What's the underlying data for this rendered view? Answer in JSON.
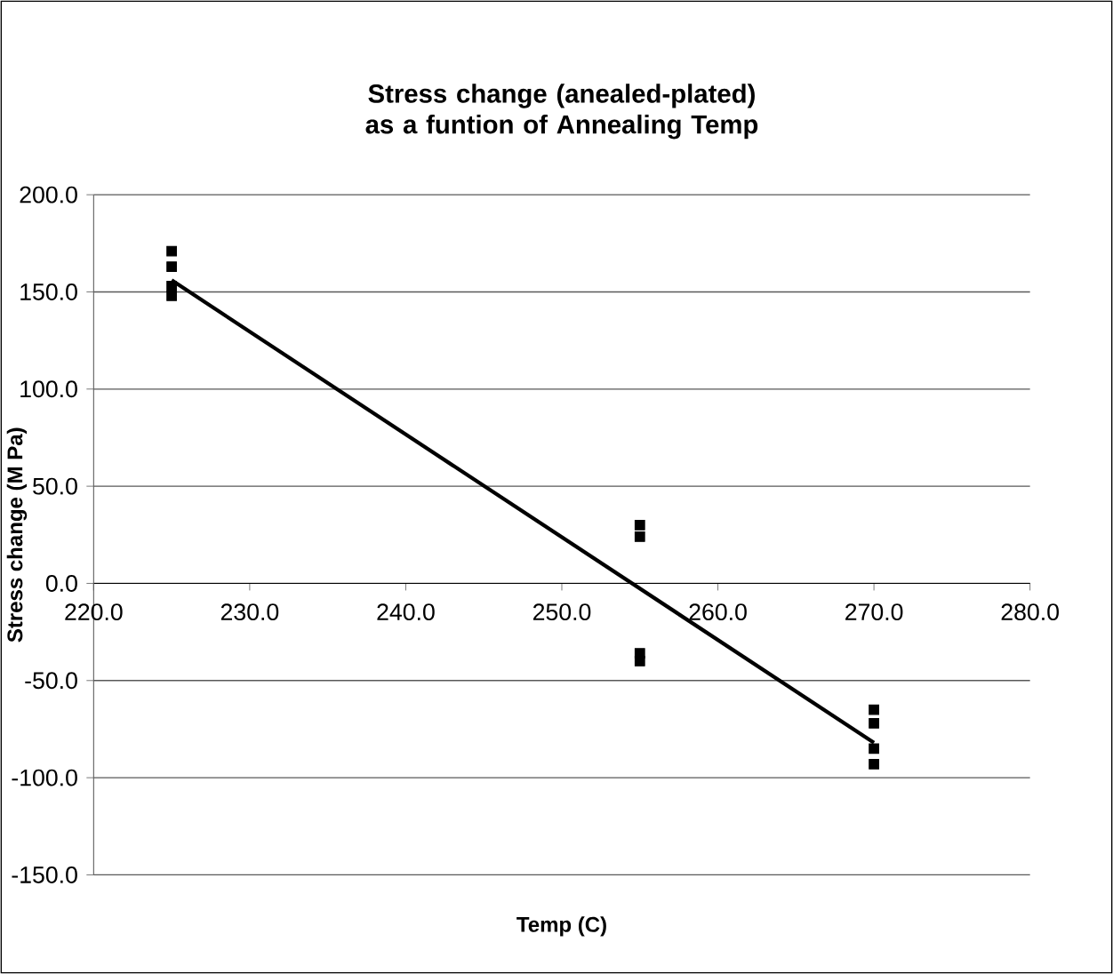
{
  "chart_data": {
    "type": "scatter",
    "title": "Stress change (anealed-plated) as a funtion of Annealing Temp",
    "xlabel": "Temp (C)",
    "ylabel": "Stress change (M Pa)",
    "series": [
      {
        "type": "scatter",
        "color": "#000000",
        "marker": "square",
        "x": [
          225,
          225,
          225,
          225,
          255,
          255,
          255,
          255,
          270,
          270,
          270,
          270
        ],
        "values": [
          171,
          163,
          153,
          148,
          30,
          24,
          -36,
          -40,
          -65,
          -72,
          -85,
          -93
        ]
      },
      {
        "type": "line",
        "color": "#000000",
        "marker": "none",
        "x": [
          225,
          270
        ],
        "values": [
          156,
          -82
        ]
      }
    ],
    "xlim": [
      220,
      280
    ],
    "xticks": [
      {
        "value": 220,
        "label": "220.0"
      },
      {
        "value": 230,
        "label": "230.0"
      },
      {
        "value": 240,
        "label": "240.0"
      },
      {
        "value": 250,
        "label": "250.0"
      },
      {
        "value": 260,
        "label": "260.0"
      },
      {
        "value": 270,
        "label": "270.0"
      },
      {
        "value": 280,
        "label": "280.0"
      }
    ],
    "ylim": [
      -150,
      200
    ],
    "yticks": [
      {
        "value": -150,
        "label": "-150.0"
      },
      {
        "value": -100,
        "label": "-100.0"
      },
      {
        "value": -50,
        "label": "-50.0"
      },
      {
        "value": 0,
        "label": "0.0"
      },
      {
        "value": 50,
        "label": "50.0"
      },
      {
        "value": 100,
        "label": "100.0"
      },
      {
        "value": 150,
        "label": "150.0"
      },
      {
        "value": 200,
        "label": "200.0"
      }
    ],
    "grid": "y",
    "legend": false
  }
}
